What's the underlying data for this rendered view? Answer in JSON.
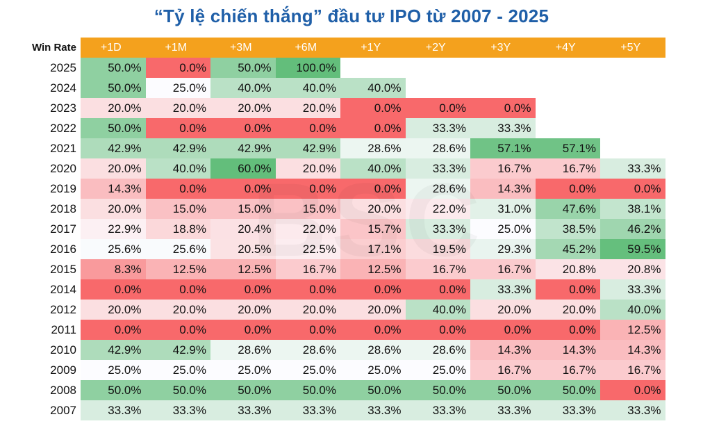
{
  "title": "“Tỷ lệ chiến thắng” đầu tư IPO từ 2007 - 2025",
  "watermark": "BSC",
  "colors": {
    "header_bg": "#f4a11d",
    "header_text": "#ffffff",
    "title": "#1f5fa8",
    "scale_low": "#f8696b",
    "scale_mid": "#fcfcff",
    "scale_high": "#63be7b"
  },
  "chart_data": {
    "type": "table",
    "title": "“Tỷ lệ chiến thắng” đầu tư IPO từ 2007 - 2025",
    "corner_label": "Win Rate",
    "columns": [
      "+1D",
      "+1M",
      "+3M",
      "+6M",
      "+1Y",
      "+2Y",
      "+3Y",
      "+4Y",
      "+5Y"
    ],
    "rows": [
      {
        "year": "2025",
        "values": [
          "50.0%",
          "0.0%",
          "50.0%",
          "100.0%",
          "",
          "",
          "",
          "",
          ""
        ]
      },
      {
        "year": "2024",
        "values": [
          "50.0%",
          "25.0%",
          "40.0%",
          "40.0%",
          "40.0%",
          "",
          "",
          "",
          ""
        ]
      },
      {
        "year": "2023",
        "values": [
          "20.0%",
          "20.0%",
          "20.0%",
          "20.0%",
          "0.0%",
          "0.0%",
          "0.0%",
          "",
          ""
        ]
      },
      {
        "year": "2022",
        "values": [
          "50.0%",
          "0.0%",
          "0.0%",
          "0.0%",
          "0.0%",
          "33.3%",
          "33.3%",
          "",
          ""
        ]
      },
      {
        "year": "2021",
        "values": [
          "42.9%",
          "42.9%",
          "42.9%",
          "42.9%",
          "28.6%",
          "28.6%",
          "57.1%",
          "57.1%",
          ""
        ]
      },
      {
        "year": "2020",
        "values": [
          "20.0%",
          "40.0%",
          "60.0%",
          "20.0%",
          "40.0%",
          "33.3%",
          "16.7%",
          "16.7%",
          "33.3%"
        ]
      },
      {
        "year": "2019",
        "values": [
          "14.3%",
          "0.0%",
          "0.0%",
          "0.0%",
          "0.0%",
          "28.6%",
          "14.3%",
          "0.0%",
          "0.0%"
        ]
      },
      {
        "year": "2018",
        "values": [
          "20.0%",
          "15.0%",
          "15.0%",
          "15.0%",
          "20.0%",
          "22.0%",
          "31.0%",
          "47.6%",
          "38.1%"
        ]
      },
      {
        "year": "2017",
        "values": [
          "22.9%",
          "18.8%",
          "20.4%",
          "22.0%",
          "15.7%",
          "33.3%",
          "25.0%",
          "38.5%",
          "46.2%"
        ]
      },
      {
        "year": "2016",
        "values": [
          "25.6%",
          "25.6%",
          "20.5%",
          "22.5%",
          "17.1%",
          "19.5%",
          "29.3%",
          "45.2%",
          "59.5%"
        ]
      },
      {
        "year": "2015",
        "values": [
          "8.3%",
          "12.5%",
          "12.5%",
          "16.7%",
          "12.5%",
          "16.7%",
          "16.7%",
          "20.8%",
          "20.8%"
        ]
      },
      {
        "year": "2014",
        "values": [
          "0.0%",
          "0.0%",
          "0.0%",
          "0.0%",
          "0.0%",
          "0.0%",
          "33.3%",
          "0.0%",
          "33.3%"
        ]
      },
      {
        "year": "2012",
        "values": [
          "20.0%",
          "20.0%",
          "20.0%",
          "20.0%",
          "20.0%",
          "40.0%",
          "20.0%",
          "20.0%",
          "40.0%"
        ]
      },
      {
        "year": "2011",
        "values": [
          "0.0%",
          "0.0%",
          "0.0%",
          "0.0%",
          "0.0%",
          "0.0%",
          "0.0%",
          "0.0%",
          "12.5%"
        ]
      },
      {
        "year": "2010",
        "values": [
          "42.9%",
          "42.9%",
          "28.6%",
          "28.6%",
          "28.6%",
          "28.6%",
          "14.3%",
          "14.3%",
          "14.3%"
        ]
      },
      {
        "year": "2009",
        "values": [
          "25.0%",
          "25.0%",
          "25.0%",
          "25.0%",
          "25.0%",
          "25.0%",
          "16.7%",
          "16.7%",
          "16.7%"
        ]
      },
      {
        "year": "2008",
        "values": [
          "50.0%",
          "50.0%",
          "50.0%",
          "50.0%",
          "50.0%",
          "50.0%",
          "50.0%",
          "50.0%",
          "0.0%"
        ]
      },
      {
        "year": "2007",
        "values": [
          "33.3%",
          "33.3%",
          "33.3%",
          "33.3%",
          "33.3%",
          "33.3%",
          "33.3%",
          "33.3%",
          "33.3%"
        ]
      }
    ]
  }
}
